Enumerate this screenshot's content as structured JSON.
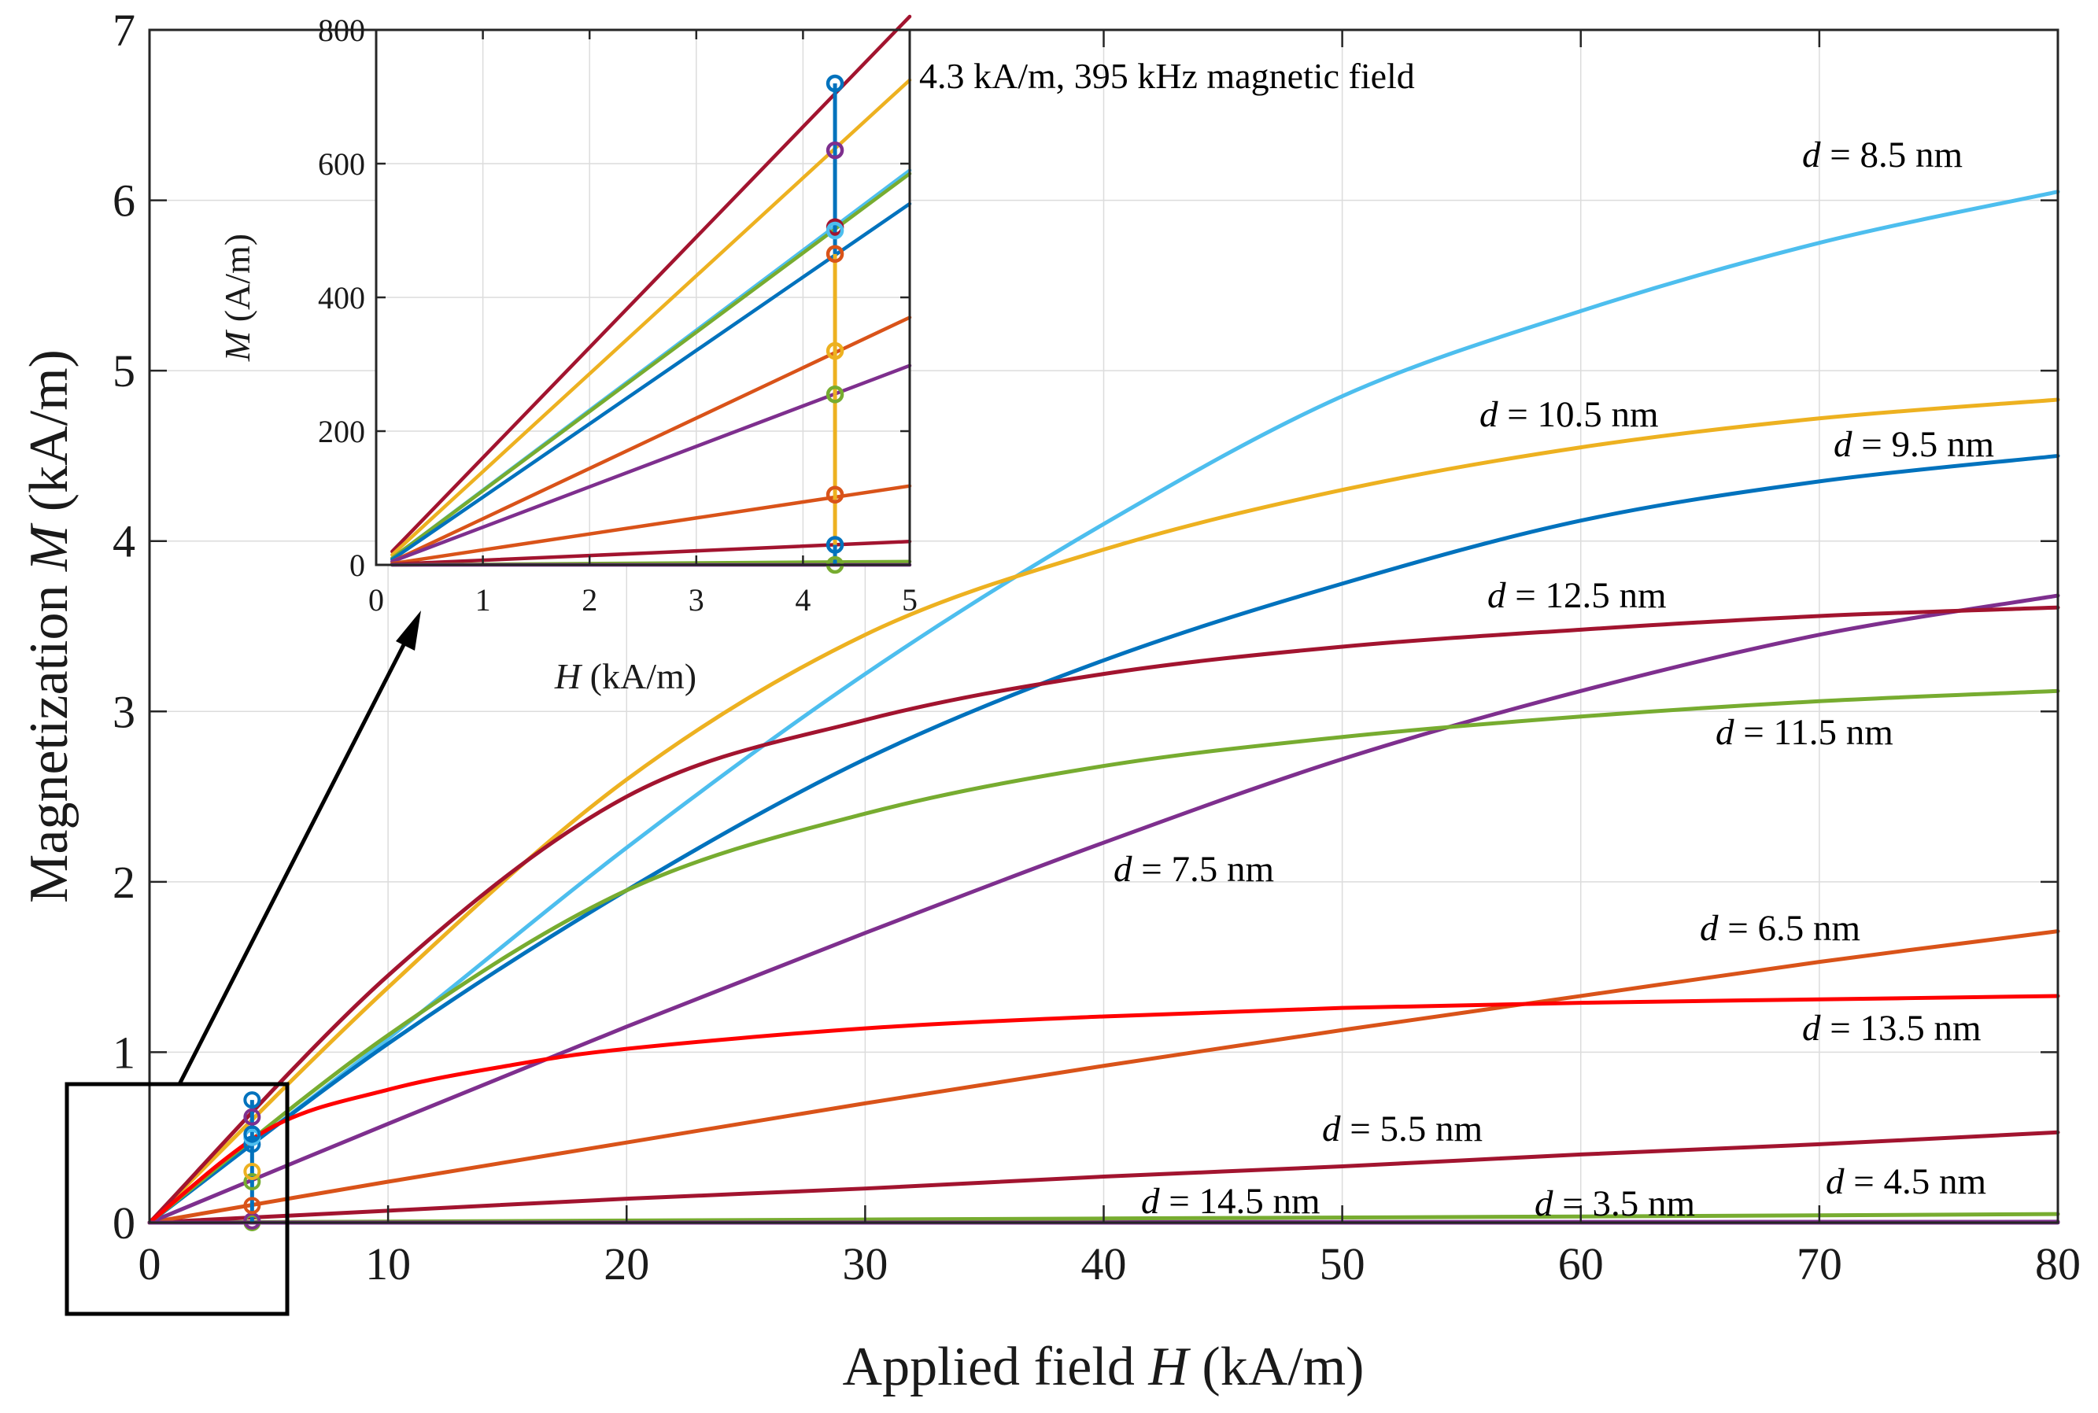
{
  "chart_data": [
    {
      "type": "line",
      "name": "main",
      "xlabel_prefix": "Applied field ",
      "xlabel_var": "H",
      "xlabel_suffix": " (kA/m)",
      "ylabel_prefix": "Magnetization ",
      "ylabel_var": "M",
      "ylabel_suffix": " (kA/m)",
      "xlim": [
        0,
        80
      ],
      "ylim": [
        0,
        7
      ],
      "xticks": [
        0,
        10,
        20,
        30,
        40,
        50,
        60,
        70,
        80
      ],
      "yticks": [
        0,
        1,
        2,
        3,
        4,
        5,
        6,
        7
      ],
      "grid": true,
      "series": [
        {
          "name": "d = 3.5 nm",
          "d_prefix": "d",
          "d_value": " = 3.5 nm",
          "color": "#7e2f8e",
          "x": [
            0,
            20,
            40,
            60,
            80
          ],
          "y": [
            0,
            0.002,
            0.003,
            0.004,
            0.005
          ]
        },
        {
          "name": "d = 4.5 nm",
          "d_prefix": "d",
          "d_value": " = 4.5 nm",
          "color": "#77ac30",
          "x": [
            0,
            20,
            40,
            60,
            80
          ],
          "y": [
            0,
            0.012,
            0.024,
            0.036,
            0.05
          ]
        },
        {
          "name": "d = 5.5 nm",
          "d_prefix": "d",
          "d_value": " = 5.5 nm",
          "color": "#a2142f",
          "x": [
            0,
            10,
            20,
            30,
            40,
            50,
            60,
            70,
            80
          ],
          "y": [
            0,
            0.07,
            0.14,
            0.2,
            0.27,
            0.33,
            0.4,
            0.46,
            0.53
          ]
        },
        {
          "name": "d = 6.5 nm",
          "d_prefix": "d",
          "d_value": " = 6.5 nm",
          "color": "#d95319",
          "x": [
            0,
            10,
            20,
            30,
            40,
            50,
            60,
            70,
            80
          ],
          "y": [
            0,
            0.24,
            0.47,
            0.7,
            0.92,
            1.13,
            1.33,
            1.53,
            1.71
          ]
        },
        {
          "name": "d = 7.5 nm",
          "d_prefix": "d",
          "d_value": " = 7.5 nm",
          "color": "#7e2f8e",
          "x": [
            0,
            10,
            20,
            30,
            40,
            50,
            60,
            70,
            80
          ],
          "y": [
            0,
            0.58,
            1.15,
            1.7,
            2.23,
            2.72,
            3.12,
            3.45,
            3.68
          ]
        },
        {
          "name": "d = 8.5 nm",
          "d_prefix": "d",
          "d_value": " = 8.5 nm",
          "color": "#4dbeee",
          "x": [
            0,
            10,
            20,
            30,
            40,
            50,
            60,
            70,
            80
          ],
          "y": [
            0,
            1.08,
            2.2,
            3.22,
            4.1,
            4.85,
            5.35,
            5.75,
            6.05
          ]
        },
        {
          "name": "d = 9.5 nm",
          "d_prefix": "d",
          "d_value": " = 9.5 nm",
          "color": "#0072bd",
          "x": [
            0,
            10,
            20,
            30,
            40,
            50,
            60,
            70,
            80
          ],
          "y": [
            0,
            1.05,
            1.95,
            2.72,
            3.3,
            3.75,
            4.12,
            4.35,
            4.5
          ]
        },
        {
          "name": "d = 10.5 nm",
          "d_prefix": "d",
          "d_value": " = 10.5 nm",
          "color": "#edb120",
          "x": [
            0,
            10,
            20,
            30,
            40,
            50,
            60,
            70,
            80
          ],
          "y": [
            0,
            1.38,
            2.6,
            3.45,
            3.95,
            4.3,
            4.55,
            4.72,
            4.83
          ]
        },
        {
          "name": "d = 11.5 nm",
          "d_prefix": "d",
          "d_value": " = 11.5 nm",
          "color": "#77ac30",
          "x": [
            0,
            10,
            20,
            30,
            40,
            50,
            60,
            70,
            80
          ],
          "y": [
            0,
            1.1,
            1.95,
            2.4,
            2.68,
            2.85,
            2.97,
            3.06,
            3.12
          ]
        },
        {
          "name": "d = 12.5 nm",
          "d_prefix": "d",
          "d_value": " = 12.5 nm",
          "color": "#a2142f",
          "x": [
            0,
            10,
            20,
            30,
            40,
            50,
            60,
            70,
            80
          ],
          "y": [
            0,
            1.45,
            2.5,
            2.95,
            3.22,
            3.38,
            3.48,
            3.56,
            3.61
          ]
        },
        {
          "name": "d = 13.5 nm",
          "d_prefix": "d",
          "d_value": " = 13.5 nm",
          "color": "#ff0000",
          "x": [
            0,
            5,
            10,
            15,
            20,
            30,
            40,
            50,
            60,
            70,
            80
          ],
          "y": [
            0,
            0.55,
            0.78,
            0.92,
            1.02,
            1.14,
            1.21,
            1.26,
            1.29,
            1.31,
            1.33
          ]
        },
        {
          "name": "d = 14.5 nm",
          "d_prefix": "d",
          "d_value": " = 14.5 nm",
          "color": "#7e2f8e",
          "x": [
            0,
            40,
            80
          ],
          "y": [
            0,
            0.0,
            0.0
          ]
        }
      ],
      "markers_at_H": 4.3,
      "marker_y": [
        0.0,
        0.01,
        0.1,
        0.24,
        0.3,
        0.46,
        0.5,
        0.52,
        0.62,
        0.72
      ]
    },
    {
      "type": "line",
      "name": "inset",
      "xlabel_var": "H",
      "xlabel_suffix": " (kA/m)",
      "ylabel_var": "M",
      "ylabel_suffix": " (A/m)",
      "xlim": [
        0,
        5
      ],
      "ylim": [
        0,
        800
      ],
      "xticks": [
        0,
        1,
        2,
        3,
        4,
        5
      ],
      "yticks": [
        0,
        200,
        400,
        600,
        800
      ],
      "grid": true,
      "series": [
        {
          "color": "#a2142f",
          "x": [
            0.15,
            5
          ],
          "y": [
            20,
            820
          ]
        },
        {
          "color": "#edb120",
          "x": [
            0.15,
            5
          ],
          "y": [
            15,
            725
          ]
        },
        {
          "color": "#4dbeee",
          "x": [
            0.15,
            5
          ],
          "y": [
            10,
            590
          ]
        },
        {
          "color": "#77ac30",
          "x": [
            0.15,
            5
          ],
          "y": [
            10,
            585
          ]
        },
        {
          "color": "#0072bd",
          "x": [
            0.15,
            5
          ],
          "y": [
            8,
            540
          ]
        },
        {
          "color": "#d95319",
          "x": [
            0.15,
            5
          ],
          "y": [
            5,
            370
          ]
        },
        {
          "color": "#7e2f8e",
          "x": [
            0.15,
            5
          ],
          "y": [
            5,
            298
          ]
        },
        {
          "color": "#d95319",
          "x": [
            0.15,
            5
          ],
          "y": [
            2,
            118
          ]
        },
        {
          "color": "#a2142f",
          "x": [
            0.15,
            5
          ],
          "y": [
            1,
            35
          ]
        },
        {
          "color": "#77ac30",
          "x": [
            0.15,
            5
          ],
          "y": [
            0,
            5
          ]
        },
        {
          "color": "#7e2f8e",
          "x": [
            0.15,
            5
          ],
          "y": [
            0,
            0
          ]
        }
      ],
      "marker_H": 4.3,
      "markers": [
        {
          "y": 720,
          "color": "#0072bd"
        },
        {
          "y": 620,
          "color": "#7e2f8e"
        },
        {
          "y": 505,
          "color": "#a2142f"
        },
        {
          "y": 500,
          "color": "#4dbeee"
        },
        {
          "y": 465,
          "color": "#d95319"
        },
        {
          "y": 320,
          "color": "#edb120"
        },
        {
          "y": 255,
          "color": "#77ac30"
        },
        {
          "y": 105,
          "color": "#d95319"
        },
        {
          "y": 30,
          "color": "#0072bd"
        },
        {
          "y": 0,
          "color": "#77ac30"
        }
      ],
      "vline_segments": [
        {
          "y0": 0,
          "y1": 30,
          "color": "#0072bd"
        },
        {
          "y0": 30,
          "y1": 255,
          "color": "#edb120"
        },
        {
          "y0": 255,
          "y1": 465,
          "color": "#edb120"
        },
        {
          "y0": 465,
          "y1": 720,
          "color": "#0072bd"
        }
      ]
    }
  ],
  "annotation": "4.3 kA/m, 395 kHz magnetic field"
}
